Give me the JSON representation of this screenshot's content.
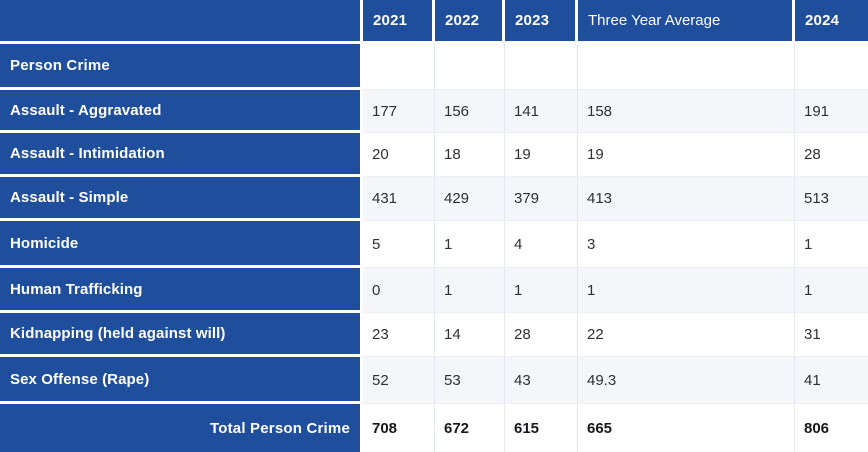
{
  "chart_data": {
    "type": "table",
    "columns": [
      "",
      "2021",
      "2022",
      "2023",
      "Three Year Average",
      "2024"
    ],
    "section_header": "Person Crime",
    "rows": [
      {
        "label": "Assault - Aggravated",
        "values": [
          "177",
          "156",
          "141",
          "158",
          "191"
        ]
      },
      {
        "label": "Assault - Intimidation",
        "values": [
          "20",
          "18",
          "19",
          "19",
          "28"
        ]
      },
      {
        "label": "Assault - Simple",
        "values": [
          "431",
          "429",
          "379",
          "413",
          "513"
        ]
      },
      {
        "label": "Homicide",
        "values": [
          "5",
          "1",
          "4",
          "3",
          "1"
        ]
      },
      {
        "label": "Human Trafficking",
        "values": [
          "0",
          "1",
          "1",
          "1",
          "1"
        ]
      },
      {
        "label": "Kidnapping (held against will)",
        "values": [
          "23",
          "14",
          "28",
          "22",
          "31"
        ]
      },
      {
        "label": "Sex Offense (Rape)",
        "values": [
          "52",
          "53",
          "43",
          "49.3",
          "41"
        ]
      }
    ],
    "total_row": {
      "label": "Total Person Crime",
      "values": [
        "708",
        "672",
        "615",
        "665",
        "806"
      ]
    },
    "layout_hints": {
      "bold_column_headers": [
        "2021",
        "2022",
        "2023",
        "2024"
      ],
      "regular_column_headers": [
        "Three Year Average"
      ],
      "alternating_row_tint_starts_on_first_data_row": true
    }
  },
  "colors": {
    "header_blue": "#1f4e9c",
    "row_tint": "#f4f6f9",
    "row_white": "#ffffff",
    "value_text": "#2e3034",
    "total_text": "#17181b",
    "grid_line": "#e4e7ee",
    "gap_white": "#ffffff"
  }
}
